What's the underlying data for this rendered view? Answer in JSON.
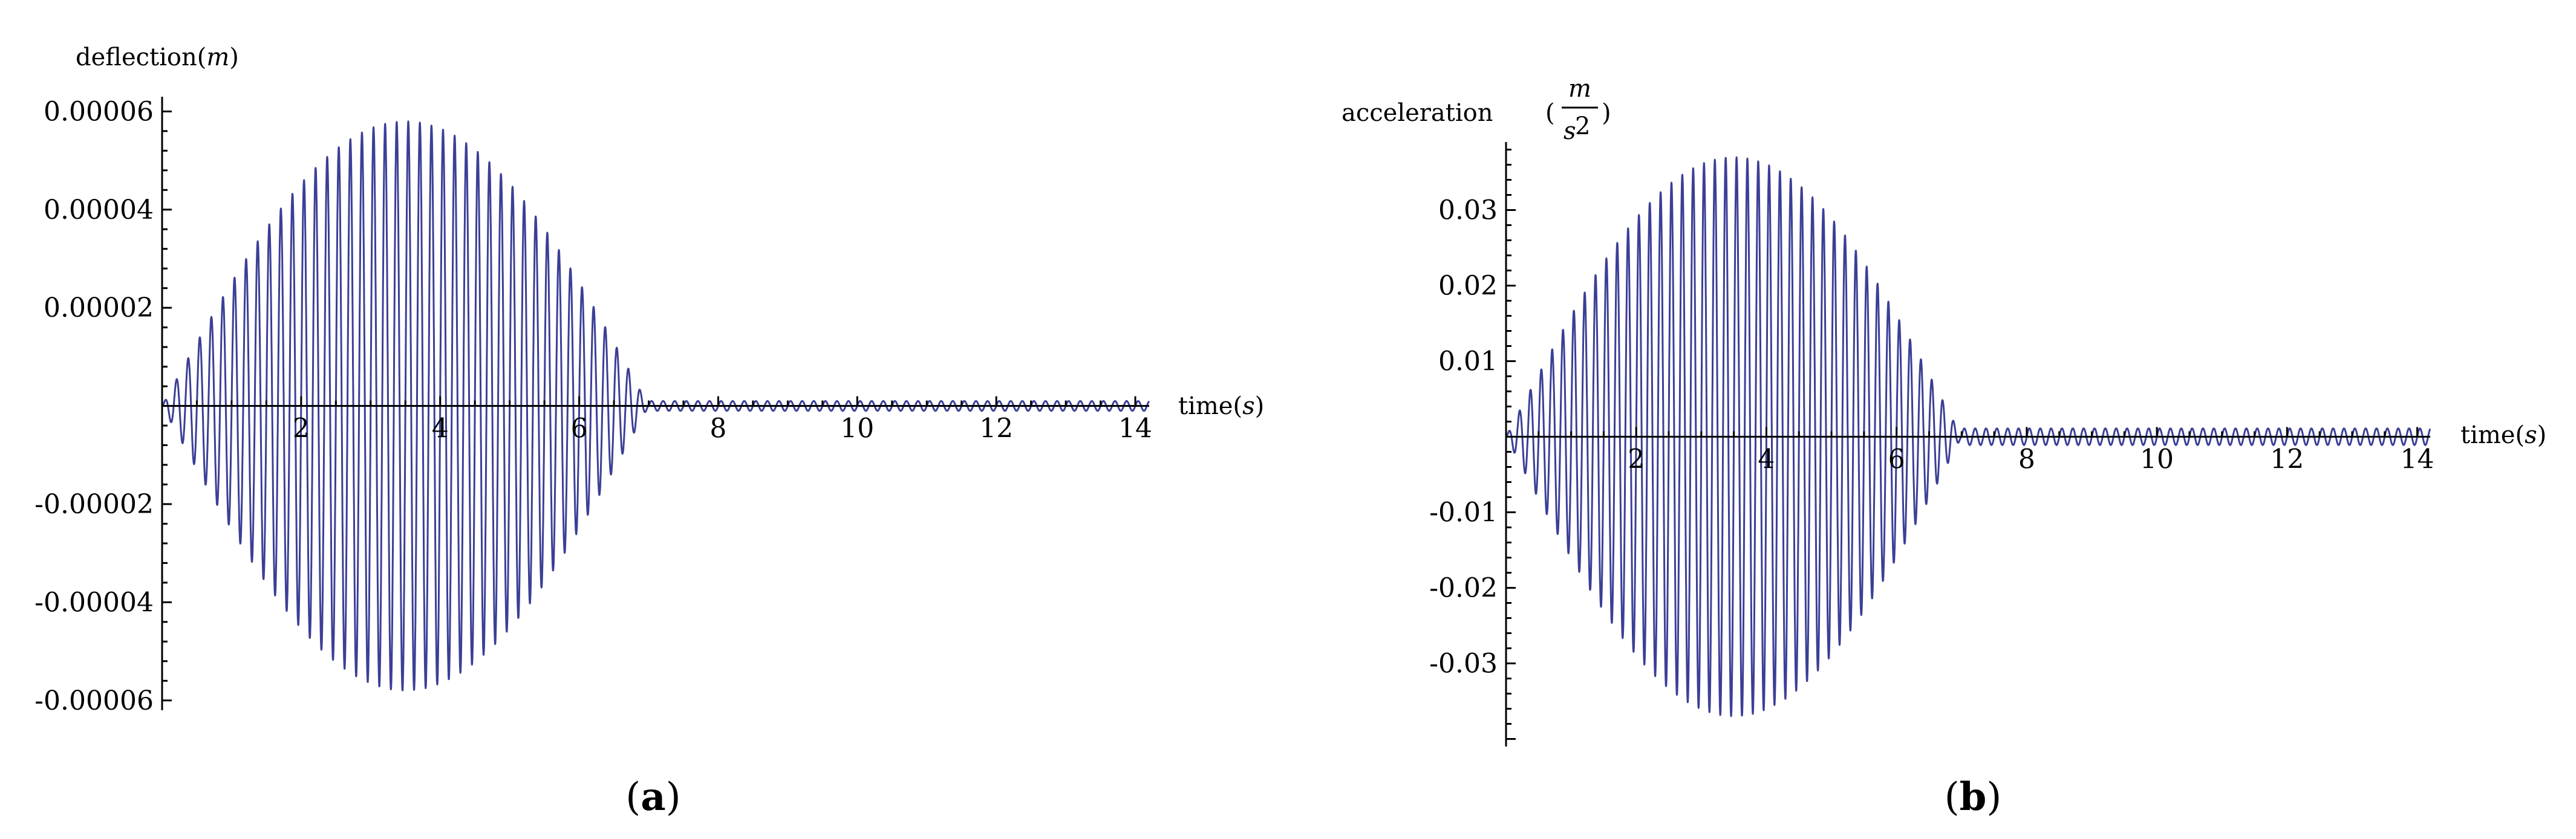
{
  "chart_data": [
    {
      "id": "a",
      "type": "line",
      "panel_label": "a",
      "xlabel_main": "time",
      "xlabel_unit": "s",
      "ylabel_main": "deflection",
      "ylabel_unit": "m",
      "xlim": [
        0,
        14.2
      ],
      "ylim": [
        -6.2e-05,
        6.3e-05
      ],
      "x_ticks": [
        2,
        4,
        6,
        8,
        10,
        12,
        14
      ],
      "y_ticks": [
        -6e-05,
        -4e-05,
        -2e-05,
        2e-05,
        4e-05,
        6e-05
      ],
      "y_tick_labels": [
        "-0.00006",
        "-0.00004",
        "-0.00002",
        "0.00002",
        "0.00004",
        "0.00006"
      ],
      "signal": {
        "frequency_hz": 6.0,
        "peak_amplitude": 5.8e-05,
        "peak_time": 3.5,
        "duration": 7.0,
        "residual_amplitude": 1e-06
      }
    },
    {
      "id": "b",
      "type": "line",
      "panel_label": "b",
      "xlabel_main": "time",
      "xlabel_unit": "s",
      "ylabel_main": "acceleration",
      "ylabel_unit_num": "m",
      "ylabel_unit_den": "s",
      "ylabel_unit_exp": "2",
      "xlim": [
        0,
        14.2
      ],
      "ylim": [
        -0.041,
        0.039
      ],
      "x_ticks": [
        2,
        4,
        6,
        8,
        10,
        12,
        14
      ],
      "y_ticks": [
        -0.03,
        -0.02,
        -0.01,
        0.01,
        0.02,
        0.03
      ],
      "y_tick_labels": [
        "-0.03",
        "-0.02",
        "-0.01",
        "0.01",
        "0.02",
        "0.03"
      ],
      "signal": {
        "frequency_hz": 6.0,
        "peak_amplitude": 0.037,
        "peak_time": 3.5,
        "duration": 7.0,
        "residual_amplitude": 0.0011
      }
    }
  ]
}
